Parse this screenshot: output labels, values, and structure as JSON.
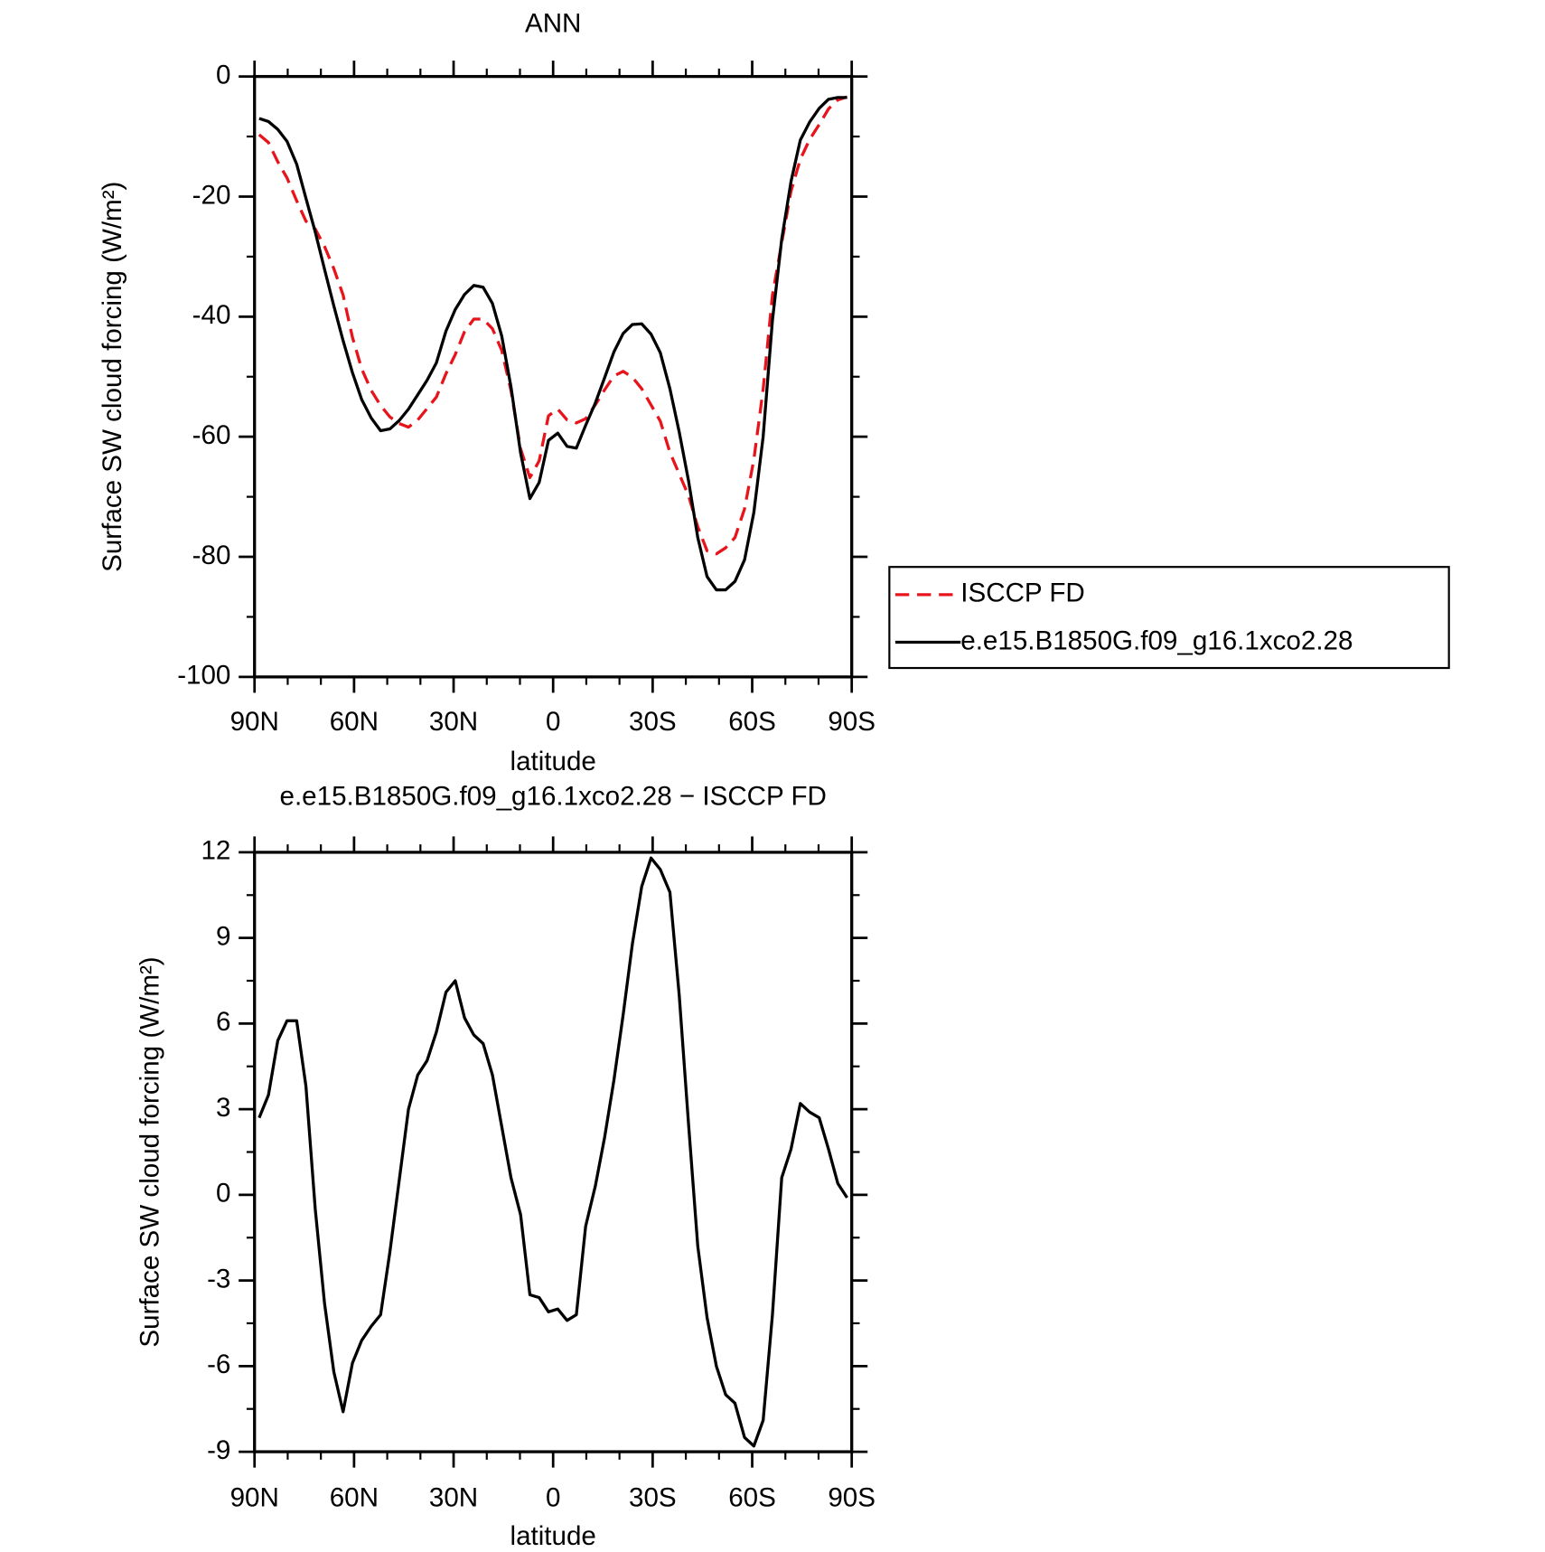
{
  "chart_data": [
    {
      "type": "line",
      "title": "ANN",
      "xlabel": "latitude",
      "ylabel": "Surface SW cloud forcing (W/m²)",
      "x": [
        88.6,
        85.8,
        83.0,
        80.2,
        77.3,
        74.5,
        71.7,
        68.9,
        66.1,
        63.3,
        60.5,
        57.7,
        54.8,
        52.0,
        49.2,
        46.4,
        43.6,
        40.8,
        38.0,
        35.2,
        32.3,
        29.5,
        26.7,
        23.9,
        21.1,
        18.3,
        15.5,
        12.7,
        9.8,
        7.0,
        4.2,
        1.4,
        -1.4,
        -4.2,
        -7.0,
        -9.8,
        -12.7,
        -15.5,
        -18.3,
        -21.1,
        -23.9,
        -26.7,
        -29.5,
        -32.3,
        -35.2,
        -38.0,
        -40.8,
        -43.6,
        -46.4,
        -49.2,
        -52.0,
        -54.8,
        -57.7,
        -60.5,
        -63.3,
        -66.1,
        -68.9,
        -71.7,
        -74.5,
        -77.3,
        -80.2,
        -83.0,
        -85.8,
        -88.6
      ],
      "series": [
        {
          "name": "ISCCP FD",
          "color": "#e8141c",
          "dash": true,
          "values": [
            -9.7,
            -11,
            -14.2,
            -16.9,
            -20.7,
            -24.1,
            -25.4,
            -28.3,
            -32,
            -36.4,
            -43.4,
            -48.7,
            -52.3,
            -54.8,
            -56.7,
            -57.8,
            -58.4,
            -57.2,
            -55.3,
            -53.4,
            -49.5,
            -46.3,
            -42.5,
            -40.4,
            -40.4,
            -42,
            -45.6,
            -52.3,
            -62,
            -66.8,
            -64,
            -56.5,
            -55.4,
            -57.2,
            -57.7,
            -57,
            -54.7,
            -52.2,
            -49.9,
            -49.1,
            -50.1,
            -52,
            -54.7,
            -57.4,
            -62.6,
            -66.2,
            -69.8,
            -75,
            -79,
            -79.5,
            -78.5,
            -76.8,
            -72,
            -63.8,
            -52.1,
            -36.4,
            -27.7,
            -19.1,
            -13.8,
            -10.5,
            -8,
            -5.4,
            -3.9,
            -3.4
          ]
        },
        {
          "name": "e.e15.B1850G.f09_g16.1xco2.28",
          "color": "#000000",
          "dash": false,
          "values": [
            -7,
            -7.5,
            -8.8,
            -10.8,
            -14.6,
            -20.3,
            -25.9,
            -32.1,
            -38.2,
            -44,
            -49.3,
            -53.8,
            -56.9,
            -59,
            -58.7,
            -57.3,
            -55.4,
            -53,
            -50.6,
            -47.7,
            -42.4,
            -38.8,
            -36.3,
            -34.8,
            -35.1,
            -37.8,
            -43.2,
            -51.7,
            -62.7,
            -70.3,
            -67.6,
            -60.6,
            -59.4,
            -61.6,
            -61.9,
            -58.1,
            -54.4,
            -50.2,
            -45.9,
            -42.8,
            -41.3,
            -41.2,
            -42.9,
            -46,
            -52,
            -59.2,
            -67.3,
            -76.8,
            -83.3,
            -85.5,
            -85.5,
            -84.1,
            -80.5,
            -72.6,
            -60,
            -40.6,
            -27.1,
            -17.5,
            -10.6,
            -7.6,
            -5.3,
            -3.8,
            -3.5,
            -3.5
          ]
        }
      ],
      "xlim": [
        90,
        -90
      ],
      "xticks": [
        {
          "value": 90,
          "label": "90N"
        },
        {
          "value": 60,
          "label": "60N"
        },
        {
          "value": 30,
          "label": "30N"
        },
        0,
        {
          "value": -30,
          "label": "30S"
        },
        {
          "value": -60,
          "label": "60S"
        },
        {
          "value": -90,
          "label": "90S"
        }
      ],
      "xminor": [
        80,
        70,
        50,
        40,
        20,
        10,
        -10,
        -20,
        -40,
        -50,
        -70,
        -80
      ],
      "ylim": [
        -100,
        0
      ],
      "yticks": [
        -100,
        -80,
        -60,
        -40,
        -20,
        0
      ],
      "yminor": [
        -90,
        -70,
        -50,
        -30,
        -10
      ],
      "legend": "right"
    },
    {
      "type": "line",
      "title": "e.e15.B1850G.f09_g16.1xco2.28 − ISCCP FD",
      "xlabel": "latitude",
      "ylabel": "Surface SW cloud forcing (W/m²)",
      "x": [
        88.6,
        85.8,
        83.0,
        80.2,
        77.3,
        74.5,
        71.7,
        68.9,
        66.1,
        63.3,
        60.5,
        57.7,
        54.8,
        52.0,
        49.2,
        46.4,
        43.6,
        40.8,
        38.0,
        35.2,
        32.3,
        29.5,
        26.7,
        23.9,
        21.1,
        18.3,
        15.5,
        12.7,
        9.8,
        7.0,
        4.2,
        1.4,
        -1.4,
        -4.2,
        -7.0,
        -9.8,
        -12.7,
        -15.5,
        -18.3,
        -21.1,
        -23.9,
        -26.7,
        -29.5,
        -32.3,
        -35.2,
        -38.0,
        -40.8,
        -43.6,
        -46.4,
        -49.2,
        -52.0,
        -54.8,
        -57.7,
        -60.5,
        -63.3,
        -66.1,
        -68.9,
        -71.7,
        -74.5,
        -77.3,
        -80.2,
        -83.0,
        -85.8,
        -88.6
      ],
      "values": [
        2.7,
        3.5,
        5.4,
        6.1,
        6.1,
        3.8,
        -0.5,
        -3.8,
        -6.2,
        -7.6,
        -5.9,
        -5.1,
        -4.6,
        -4.2,
        -2.0,
        0.5,
        3.0,
        4.2,
        4.7,
        5.7,
        7.1,
        7.5,
        6.2,
        5.6,
        5.3,
        4.2,
        2.4,
        0.6,
        -0.7,
        -3.5,
        -3.6,
        -4.1,
        -4.0,
        -4.4,
        -4.2,
        -1.1,
        0.3,
        2.0,
        4.0,
        6.3,
        8.8,
        10.8,
        11.8,
        11.4,
        10.6,
        7.0,
        2.5,
        -1.8,
        -4.3,
        -6.0,
        -7.0,
        -7.3,
        -8.5,
        -8.8,
        -7.9,
        -4.2,
        0.6,
        1.6,
        3.2,
        2.9,
        2.7,
        1.6,
        0.4,
        -0.1
      ],
      "color": "#000000",
      "xlim": [
        90,
        -90
      ],
      "xticks": [
        {
          "value": 90,
          "label": "90N"
        },
        {
          "value": 60,
          "label": "60N"
        },
        {
          "value": 30,
          "label": "30N"
        },
        0,
        {
          "value": -30,
          "label": "30S"
        },
        {
          "value": -60,
          "label": "60S"
        },
        {
          "value": -90,
          "label": "90S"
        }
      ],
      "xminor": [
        80,
        70,
        50,
        40,
        20,
        10,
        -10,
        -20,
        -40,
        -50,
        -70,
        -80
      ],
      "ylim": [
        -9,
        12
      ],
      "yticks": [
        -9,
        -6,
        -3,
        0,
        3,
        6,
        9,
        12
      ],
      "yminor": [
        -7.5,
        -4.5,
        -1.5,
        1.5,
        4.5,
        7.5,
        10.5
      ]
    }
  ]
}
